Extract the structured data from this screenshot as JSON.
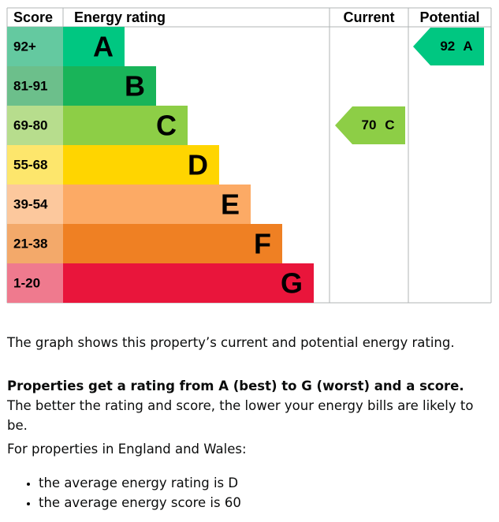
{
  "header": [
    "Score",
    "Energy rating",
    "Current",
    "Potential"
  ],
  "bands": [
    {
      "range": "92+",
      "letter": "A",
      "color": "#00c781",
      "light": "#64c9a0"
    },
    {
      "range": "81-91",
      "letter": "B",
      "color": "#19b459",
      "light": "#6cbf8b"
    },
    {
      "range": "69-80",
      "letter": "C",
      "color": "#8dce46",
      "light": "#b7dd8d"
    },
    {
      "range": "55-68",
      "letter": "D",
      "color": "#ffd500",
      "light": "#fde66c"
    },
    {
      "range": "39-54",
      "letter": "E",
      "color": "#fcaa65",
      "light": "#fcc89d"
    },
    {
      "range": "21-38",
      "letter": "F",
      "color": "#ef8023",
      "light": "#f3a96a"
    },
    {
      "range": "1-20",
      "letter": "G",
      "color": "#e9153b",
      "light": "#ef7a8e"
    }
  ],
  "current": {
    "score": 70,
    "rating": "C"
  },
  "potential": {
    "score": 92,
    "rating": "A"
  },
  "paragraphs": [
    "The graph shows this property’s current and potential energy rating.",
    {
      "bold": "Properties get a rating from A (best) to G (worst) and a score.",
      "text": " The better the rating and score, the lower your energy bills are likely to be."
    },
    "For properties in England and Wales:"
  ],
  "list": [
    "the average energy rating is D",
    "the average energy score is 60"
  ]
}
